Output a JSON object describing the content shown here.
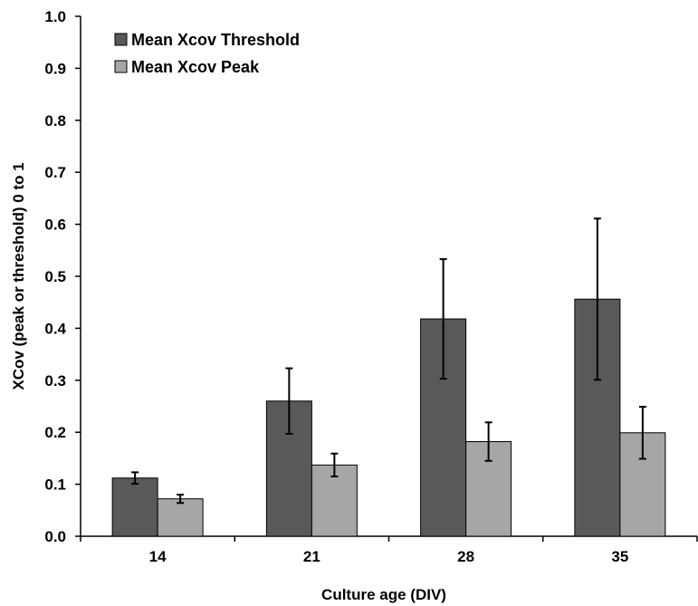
{
  "chart_data": {
    "type": "bar",
    "title": "",
    "xlabel": "Culture age (DIV)",
    "ylabel": "XCov (peak or threshold) 0 to 1",
    "ylim": [
      0,
      1
    ],
    "yticks": [
      "0.0",
      "0.1",
      "0.2",
      "0.3",
      "0.4",
      "0.5",
      "0.6",
      "0.7",
      "0.8",
      "0.9",
      "1.0"
    ],
    "categories": [
      "14",
      "21",
      "28",
      "35"
    ],
    "series": [
      {
        "name": "Mean Xcov Threshold",
        "color": "#595959",
        "values": [
          0.112,
          0.26,
          0.418,
          0.456
        ],
        "error": [
          0.011,
          0.063,
          0.115,
          0.155
        ]
      },
      {
        "name": "Mean Xcov Peak",
        "color": "#a6a6a6",
        "values": [
          0.072,
          0.137,
          0.182,
          0.199
        ],
        "error": [
          0.008,
          0.022,
          0.037,
          0.05
        ]
      }
    ],
    "grid": false,
    "legend": "top-left"
  }
}
